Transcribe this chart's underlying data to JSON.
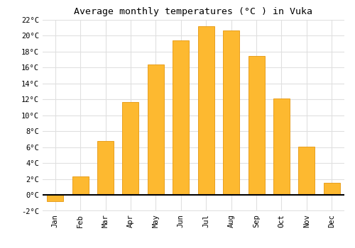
{
  "months": [
    "Jan",
    "Feb",
    "Mar",
    "Apr",
    "May",
    "Jun",
    "Jul",
    "Aug",
    "Sep",
    "Oct",
    "Nov",
    "Dec"
  ],
  "values": [
    -0.8,
    2.3,
    6.8,
    11.7,
    16.4,
    19.4,
    21.2,
    20.7,
    17.5,
    12.1,
    6.1,
    1.5
  ],
  "bar_color": "#FDB930",
  "bar_edge_color": "#E8A020",
  "title": "Average monthly temperatures (°C ) in Vuka",
  "ylim": [
    -2,
    22
  ],
  "yticks": [
    -2,
    0,
    2,
    4,
    6,
    8,
    10,
    12,
    14,
    16,
    18,
    20,
    22
  ],
  "ytick_labels": [
    "-2°C",
    "0°C",
    "2°C",
    "4°C",
    "6°C",
    "8°C",
    "10°C",
    "12°C",
    "14°C",
    "16°C",
    "18°C",
    "20°C",
    "22°C"
  ],
  "background_color": "#ffffff",
  "grid_color": "#e0e0e0",
  "title_fontsize": 9.5,
  "tick_fontsize": 7.5,
  "bar_width": 0.65
}
